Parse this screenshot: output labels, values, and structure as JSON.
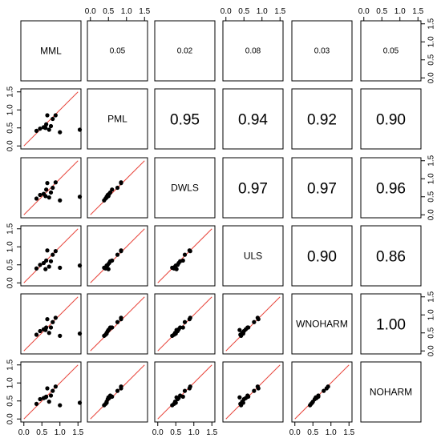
{
  "chart_data": {
    "type": "scatter-matrix",
    "variables": [
      "MML",
      "PML",
      "DWLS",
      "ULS",
      "WNOHARM",
      "NOHARM"
    ],
    "axis_range": [
      0,
      1.5
    ],
    "axis_ticks": [
      "0.0",
      "0.5",
      "1.0",
      "1.5"
    ],
    "reference_line": {
      "slope": 1,
      "intercept": 0,
      "color": "#e8443a"
    },
    "upper_values": [
      [
        "",
        "0.05",
        "0.02",
        "0.08",
        "0.03",
        "0.05"
      ],
      [
        "",
        "",
        "0.95",
        "0.94",
        "0.92",
        "0.90"
      ],
      [
        "",
        "",
        "",
        "0.97",
        "0.97",
        "0.96"
      ],
      [
        "",
        "",
        "",
        "",
        "0.90",
        "0.86"
      ],
      [
        "",
        "",
        "",
        "",
        "",
        "1.00"
      ],
      [
        "",
        "",
        "",
        "",
        "",
        ""
      ]
    ],
    "data": {
      "MML": [
        1.55,
        0.35,
        0.45,
        0.55,
        0.6,
        0.62,
        0.65,
        0.7,
        0.75,
        0.8,
        0.88,
        1.0
      ],
      "PML": [
        0.45,
        0.42,
        0.48,
        0.52,
        0.5,
        0.6,
        0.85,
        0.45,
        0.55,
        0.75,
        0.85,
        0.38
      ],
      "DWLS": [
        0.5,
        0.45,
        0.55,
        0.58,
        0.52,
        0.7,
        0.88,
        0.48,
        0.62,
        0.75,
        0.9,
        0.4
      ],
      "ULS": [
        0.48,
        0.4,
        0.5,
        0.55,
        0.38,
        0.62,
        0.9,
        0.45,
        0.6,
        0.78,
        0.88,
        0.42
      ],
      "WNOHARM": [
        0.48,
        0.45,
        0.55,
        0.6,
        0.58,
        0.65,
        0.88,
        0.5,
        0.65,
        0.8,
        0.92,
        0.42
      ],
      "NOHARM": [
        0.45,
        0.42,
        0.55,
        0.58,
        0.6,
        0.62,
        0.85,
        0.48,
        0.65,
        0.78,
        0.9,
        0.38
      ]
    }
  }
}
